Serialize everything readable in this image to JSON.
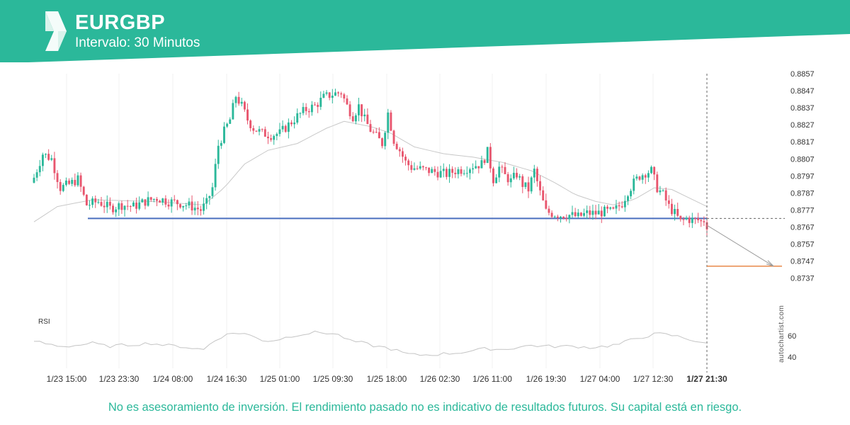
{
  "header": {
    "symbol": "EURGBP",
    "interval": "Intervalo: 30 Minutos",
    "brand_color": "#2bb89a"
  },
  "footer": {
    "disclaimer": "No es asesoramiento de inversión. El rendimiento pasado no es indicativo de resultados futuros. Su capital está en riesgo."
  },
  "chart_data": {
    "type": "candlestick",
    "y_ticks": [
      "0.8857",
      "0.8847",
      "0.8837",
      "0.8827",
      "0.8817",
      "0.8807",
      "0.8797",
      "0.8787",
      "0.8777",
      "0.8767",
      "0.8757",
      "0.8747",
      "0.8737"
    ],
    "ylim": [
      0.8733,
      0.8861
    ],
    "x_ticks": [
      "1/23 15:00",
      "1/23 23:30",
      "1/24 08:00",
      "1/24 16:30",
      "1/25 01:00",
      "1/25 09:30",
      "1/25 18:00",
      "1/26 02:30",
      "1/26 11:00",
      "1/26 19:30",
      "1/27 04:00",
      "1/27 12:30",
      "1/27 21:30"
    ],
    "current_time_label": "1/27 21:30",
    "up_color": "#2bb89a",
    "down_color": "#e8566e",
    "support_level": 0.8772,
    "support_color": "#4a6fbf",
    "target_level": 0.8744,
    "target_color": "#e8894a",
    "close_path": [
      [
        0,
        0.8796
      ],
      [
        3,
        0.881
      ],
      [
        6,
        0.8807
      ],
      [
        9,
        0.879
      ],
      [
        12,
        0.8792
      ],
      [
        15,
        0.8795
      ],
      [
        18,
        0.878
      ],
      [
        22,
        0.8782
      ],
      [
        26,
        0.8778
      ],
      [
        30,
        0.878
      ],
      [
        34,
        0.8779
      ],
      [
        38,
        0.8782
      ],
      [
        42,
        0.8784
      ],
      [
        46,
        0.8782
      ],
      [
        50,
        0.8781
      ],
      [
        54,
        0.8779
      ],
      [
        57,
        0.8777
      ],
      [
        59,
        0.8781
      ],
      [
        61,
        0.879
      ],
      [
        63,
        0.8815
      ],
      [
        65,
        0.8823
      ],
      [
        67,
        0.883
      ],
      [
        69,
        0.8844
      ],
      [
        71,
        0.8838
      ],
      [
        73,
        0.883
      ],
      [
        75,
        0.8825
      ],
      [
        78,
        0.8822
      ],
      [
        81,
        0.8821
      ],
      [
        84,
        0.8822
      ],
      [
        87,
        0.8827
      ],
      [
        90,
        0.8832
      ],
      [
        93,
        0.8836
      ],
      [
        96,
        0.8838
      ],
      [
        99,
        0.8843
      ],
      [
        102,
        0.8845
      ],
      [
        105,
        0.8846
      ],
      [
        107,
        0.8838
      ],
      [
        109,
        0.8832
      ],
      [
        111,
        0.8838
      ],
      [
        113,
        0.883
      ],
      [
        115,
        0.8824
      ],
      [
        117,
        0.882
      ],
      [
        119,
        0.8816
      ],
      [
        121,
        0.8834
      ],
      [
        123,
        0.8818
      ],
      [
        125,
        0.8812
      ],
      [
        127,
        0.8805
      ],
      [
        129,
        0.8802
      ],
      [
        132,
        0.8801
      ],
      [
        135,
        0.88
      ],
      [
        138,
        0.8799
      ],
      [
        141,
        0.8798
      ],
      [
        144,
        0.88
      ],
      [
        147,
        0.8801
      ],
      [
        150,
        0.8803
      ],
      [
        153,
        0.8804
      ],
      [
        155,
        0.8811
      ],
      [
        157,
        0.8795
      ],
      [
        159,
        0.8802
      ],
      [
        161,
        0.8797
      ],
      [
        163,
        0.8794
      ],
      [
        165,
        0.8798
      ],
      [
        167,
        0.8792
      ],
      [
        169,
        0.8789
      ],
      [
        171,
        0.88
      ],
      [
        173,
        0.8787
      ],
      [
        175,
        0.8776
      ],
      [
        177,
        0.8775
      ],
      [
        180,
        0.8774
      ],
      [
        183,
        0.8774
      ],
      [
        186,
        0.8773
      ],
      [
        189,
        0.8775
      ],
      [
        192,
        0.8775
      ],
      [
        195,
        0.8776
      ],
      [
        198,
        0.8776
      ],
      [
        201,
        0.8781
      ],
      [
        203,
        0.8788
      ],
      [
        205,
        0.8793
      ],
      [
        207,
        0.8797
      ],
      [
        209,
        0.8799
      ],
      [
        211,
        0.88
      ],
      [
        213,
        0.879
      ],
      [
        215,
        0.8786
      ],
      [
        217,
        0.8779
      ],
      [
        219,
        0.8775
      ],
      [
        221,
        0.877
      ],
      [
        223,
        0.8772
      ],
      [
        225,
        0.8771
      ],
      [
        227,
        0.8771
      ],
      [
        228,
        0.877
      ],
      [
        229,
        0.8771
      ],
      [
        230,
        0.8768
      ]
    ],
    "sma_path": [
      [
        0,
        0.877
      ],
      [
        8,
        0.8779
      ],
      [
        20,
        0.8783
      ],
      [
        40,
        0.8782
      ],
      [
        58,
        0.878
      ],
      [
        65,
        0.879
      ],
      [
        72,
        0.8804
      ],
      [
        80,
        0.8812
      ],
      [
        90,
        0.8816
      ],
      [
        100,
        0.8825
      ],
      [
        106,
        0.8829
      ],
      [
        115,
        0.8826
      ],
      [
        122,
        0.8822
      ],
      [
        130,
        0.8814
      ],
      [
        140,
        0.881
      ],
      [
        150,
        0.8808
      ],
      [
        160,
        0.8805
      ],
      [
        170,
        0.88
      ],
      [
        178,
        0.8793
      ],
      [
        185,
        0.8786
      ],
      [
        192,
        0.8782
      ],
      [
        198,
        0.878
      ],
      [
        205,
        0.8783
      ],
      [
        212,
        0.879
      ],
      [
        218,
        0.8789
      ],
      [
        224,
        0.8784
      ],
      [
        230,
        0.8779
      ]
    ],
    "rsi": {
      "label": "RSI",
      "ticks": [
        "60",
        "40"
      ],
      "ylim": [
        35,
        70
      ],
      "values": [
        [
          0,
          55
        ],
        [
          5,
          52
        ],
        [
          10,
          50
        ],
        [
          15,
          51
        ],
        [
          20,
          53
        ],
        [
          25,
          50
        ],
        [
          30,
          51
        ],
        [
          35,
          52
        ],
        [
          40,
          53
        ],
        [
          45,
          51
        ],
        [
          50,
          50
        ],
        [
          55,
          48
        ],
        [
          58,
          47
        ],
        [
          60,
          52
        ],
        [
          63,
          58
        ],
        [
          66,
          61
        ],
        [
          69,
          63
        ],
        [
          72,
          62
        ],
        [
          75,
          59
        ],
        [
          78,
          56
        ],
        [
          81,
          55
        ],
        [
          84,
          57
        ],
        [
          87,
          59
        ],
        [
          90,
          61
        ],
        [
          93,
          62
        ],
        [
          96,
          63
        ],
        [
          99,
          63
        ],
        [
          102,
          62
        ],
        [
          105,
          60
        ],
        [
          108,
          55
        ],
        [
          111,
          54
        ],
        [
          114,
          52
        ],
        [
          117,
          50
        ],
        [
          120,
          49
        ],
        [
          123,
          47
        ],
        [
          125,
          45
        ],
        [
          127,
          43
        ],
        [
          130,
          42
        ],
        [
          135,
          42
        ],
        [
          140,
          43
        ],
        [
          145,
          44
        ],
        [
          150,
          46
        ],
        [
          155,
          48
        ],
        [
          160,
          47
        ],
        [
          165,
          49
        ],
        [
          170,
          51
        ],
        [
          175,
          50
        ],
        [
          180,
          50
        ],
        [
          185,
          50
        ],
        [
          190,
          49
        ],
        [
          195,
          50
        ],
        [
          200,
          52
        ],
        [
          205,
          57
        ],
        [
          210,
          60
        ],
        [
          213,
          62
        ],
        [
          216,
          61
        ],
        [
          219,
          60
        ],
        [
          222,
          58
        ],
        [
          225,
          56
        ],
        [
          228,
          54
        ],
        [
          230,
          52
        ]
      ]
    },
    "watermark": "autochartist.com"
  }
}
